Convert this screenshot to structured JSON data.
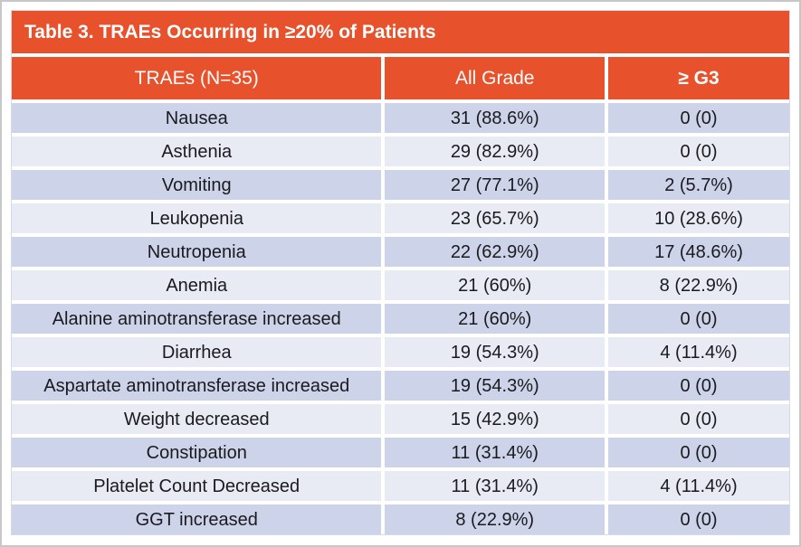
{
  "colors": {
    "accent_orange": "#e7512b",
    "row_stripe_dark": "#cdd3e8",
    "row_stripe_light": "#e9ebf4",
    "header_text": "#ffffff",
    "row_text": "#1a1a1f",
    "frame_border": "#c7c7c7"
  },
  "table": {
    "title": "Table 3. TRAEs Occurring in ≥20% of Patients",
    "columns": [
      "TRAEs (N=35)",
      "All Grade",
      "≥ G3"
    ],
    "rows": [
      {
        "trae": "Nausea",
        "all_grade": "31 (88.6%)",
        "g3": "0 (0)"
      },
      {
        "trae": "Asthenia",
        "all_grade": "29 (82.9%)",
        "g3": "0 (0)"
      },
      {
        "trae": "Vomiting",
        "all_grade": "27 (77.1%)",
        "g3": "2 (5.7%)"
      },
      {
        "trae": "Leukopenia",
        "all_grade": "23 (65.7%)",
        "g3": "10 (28.6%)"
      },
      {
        "trae": "Neutropenia",
        "all_grade": "22 (62.9%)",
        "g3": "17 (48.6%)"
      },
      {
        "trae": "Anemia",
        "all_grade": "21 (60%)",
        "g3": "8 (22.9%)"
      },
      {
        "trae": "Alanine aminotransferase increased",
        "all_grade": "21 (60%)",
        "g3": "0 (0)"
      },
      {
        "trae": "Diarrhea",
        "all_grade": "19 (54.3%)",
        "g3": "4 (11.4%)"
      },
      {
        "trae": "Aspartate aminotransferase increased",
        "all_grade": "19 (54.3%)",
        "g3": "0 (0)"
      },
      {
        "trae": "Weight decreased",
        "all_grade": "15 (42.9%)",
        "g3": "0 (0)"
      },
      {
        "trae": "Constipation",
        "all_grade": "11 (31.4%)",
        "g3": "0 (0)"
      },
      {
        "trae": "Platelet Count Decreased",
        "all_grade": "11 (31.4%)",
        "g3": "4 (11.4%)"
      },
      {
        "trae": "GGT increased",
        "all_grade": "8 (22.9%)",
        "g3": "0 (0)"
      }
    ]
  }
}
